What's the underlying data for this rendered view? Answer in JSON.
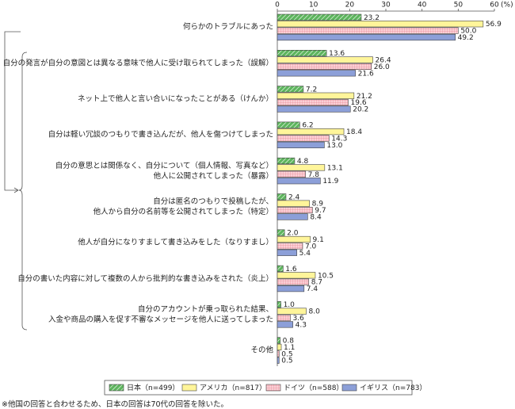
{
  "chart_data": {
    "type": "hbar",
    "categories": [
      "何らかのトラブルにあった",
      "自分の発言が自分の意図とは異なる意味で他人に受け取られてしまった（誤解）",
      "ネット上で他人と言い合いになったことがある（けんか）",
      "自分は軽い冗談のつもりで書き込んだが、他人を傷つけてしまった",
      "自分の意思とは関係なく、自分について（個人情報、写真など）\n他人に公開されてしまった（暴露）",
      "自分は匿名のつもりで投稿したが、\n他人から自分の名前等を公開されてしまった（特定）",
      "他人が自分になりすまして書き込みをした（なりすまし）",
      "自分の書いた内容に対して複数の人から批判的な書き込みをされた（炎上）",
      "自分のアカウントが乗っ取られた結果、\n入金や商品の購入を促す不審なメッセージを他人に送ってしまった",
      "その他"
    ],
    "series": [
      {
        "name": "日本（n=499）",
        "color": "#5db55d",
        "pattern": "hatch",
        "values": [
          23.2,
          13.6,
          7.2,
          6.2,
          4.8,
          2.4,
          2.0,
          1.6,
          1.0,
          0.8
        ],
        "value_labels": [
          "23.2",
          "13.6",
          "7.2",
          "6.2",
          "4.8",
          "2.4",
          "2.0",
          "1.6",
          "1.0",
          "0.8"
        ]
      },
      {
        "name": "アメリカ（n=817）",
        "color": "#fff59a",
        "pattern": "solid",
        "values": [
          56.9,
          26.4,
          21.2,
          18.4,
          13.1,
          8.9,
          9.1,
          10.5,
          8.0,
          1.1
        ],
        "value_labels": [
          "56.9",
          "26.4",
          "21.2",
          "18.4",
          "13.1",
          "8.9",
          "9.1",
          "10.5",
          "8.0",
          "1.1"
        ]
      },
      {
        "name": "ドイツ（n=588）",
        "color": "#fbd0d6",
        "pattern": "grid",
        "values": [
          50.0,
          26.0,
          19.6,
          14.3,
          7.8,
          9.7,
          7.0,
          8.7,
          3.6,
          0.5
        ],
        "value_labels": [
          "50.0",
          "26.0",
          "19.6",
          "14.3",
          "7.8",
          "9.7",
          "7.0",
          "8.7",
          "3.6",
          "0.5"
        ]
      },
      {
        "name": "イギリス（n=783）",
        "color": "#8c9fd8",
        "pattern": "solid",
        "values": [
          49.2,
          21.6,
          20.2,
          13.0,
          11.9,
          8.4,
          5.4,
          7.4,
          4.3,
          0.5
        ],
        "value_labels": [
          "49.2",
          "21.6",
          "20.2",
          "13.0",
          "11.9",
          "8.4",
          "5.4",
          "7.4",
          "4.3",
          "0.5"
        ]
      }
    ],
    "xlim": [
      0,
      60
    ],
    "xticks": [
      0,
      10,
      20,
      30,
      40,
      50,
      60
    ],
    "unit": "(%)",
    "footnote": "※他国の回答と合わせるため、日本の回答は70代の回答を除いた。"
  }
}
